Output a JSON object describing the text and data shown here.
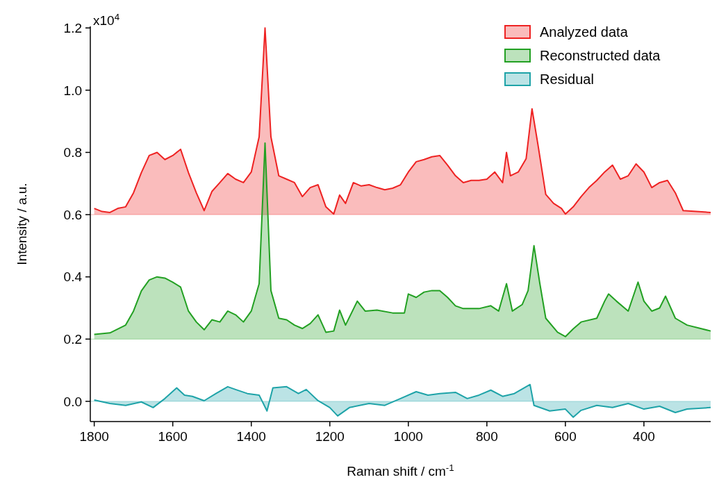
{
  "chart_data": {
    "type": "area",
    "xlabel": "Raman shift / cm$^{-1}$",
    "ylabel": "Intensity / a.u.",
    "xlim": [
      1810,
      230
    ],
    "ylim": [
      -0.065,
      1.205
    ],
    "xticks": [
      1800,
      1600,
      1400,
      1200,
      1000,
      800,
      600,
      400
    ],
    "yticks": [
      {
        "value": 0,
        "label": "0.0"
      },
      {
        "value": 0.2,
        "label": "0.2"
      },
      {
        "value": 0.4,
        "label": "0.4"
      },
      {
        "value": 0.6,
        "label": "0.6"
      },
      {
        "value": 0.8,
        "label": "0.8"
      },
      {
        "value": 1,
        "label": "1.0"
      },
      {
        "value": 1.2,
        "label": "1.2"
      }
    ],
    "annotations": [
      "x10$^{4}$"
    ],
    "grid": false,
    "ref_lines": [
      {
        "axis": "y",
        "value": 0.6,
        "color": "#ee2222"
      },
      {
        "axis": "y",
        "value": 0.2,
        "color": "#22a022"
      },
      {
        "axis": "y",
        "value": 0,
        "color": "#1ea3a8"
      }
    ],
    "legend": "top right",
    "series": [
      {
        "name": "Analyzed data",
        "color": "#ee2222",
        "x": [
          1800,
          1780,
          1760,
          1740,
          1720,
          1700,
          1680,
          1660,
          1640,
          1620,
          1600,
          1580,
          1560,
          1540,
          1520,
          1500,
          1480,
          1460,
          1440,
          1420,
          1400,
          1380,
          1365,
          1350,
          1330,
          1310,
          1290,
          1270,
          1250,
          1230,
          1210,
          1190,
          1175,
          1160,
          1140,
          1120,
          1100,
          1080,
          1060,
          1040,
          1020,
          1000,
          980,
          960,
          940,
          920,
          900,
          880,
          860,
          840,
          820,
          800,
          780,
          760,
          750,
          740,
          720,
          700,
          685,
          670,
          650,
          630,
          610,
          600,
          580,
          560,
          540,
          520,
          500,
          480,
          460,
          440,
          420,
          400,
          380,
          360,
          340,
          320,
          300,
          230
        ],
        "values": [
          0.62,
          0.61,
          0.607,
          0.62,
          0.625,
          0.67,
          0.735,
          0.79,
          0.8,
          0.777,
          0.79,
          0.81,
          0.735,
          0.67,
          0.613,
          0.675,
          0.703,
          0.732,
          0.714,
          0.703,
          0.737,
          0.85,
          1.2,
          0.85,
          0.725,
          0.714,
          0.703,
          0.658,
          0.687,
          0.696,
          0.625,
          0.602,
          0.663,
          0.636,
          0.703,
          0.692,
          0.696,
          0.687,
          0.68,
          0.685,
          0.696,
          0.737,
          0.77,
          0.777,
          0.786,
          0.79,
          0.759,
          0.725,
          0.703,
          0.71,
          0.71,
          0.714,
          0.737,
          0.703,
          0.8,
          0.725,
          0.737,
          0.78,
          0.94,
          0.826,
          0.665,
          0.636,
          0.62,
          0.602,
          0.625,
          0.658,
          0.687,
          0.71,
          0.737,
          0.759,
          0.714,
          0.725,
          0.763,
          0.737,
          0.687,
          0.703,
          0.71,
          0.67,
          0.613,
          0.607
        ]
      },
      {
        "name": "Reconstructed data",
        "color": "#22a022",
        "x": [
          1800,
          1760,
          1720,
          1700,
          1680,
          1660,
          1640,
          1620,
          1600,
          1580,
          1560,
          1540,
          1520,
          1500,
          1480,
          1460,
          1440,
          1420,
          1400,
          1380,
          1365,
          1350,
          1330,
          1310,
          1290,
          1270,
          1250,
          1230,
          1210,
          1190,
          1175,
          1160,
          1130,
          1110,
          1080,
          1040,
          1010,
          1000,
          980,
          960,
          940,
          920,
          900,
          880,
          860,
          820,
          790,
          770,
          750,
          735,
          710,
          695,
          680,
          665,
          650,
          620,
          600,
          580,
          560,
          520,
          500,
          490,
          470,
          440,
          415,
          400,
          380,
          360,
          345,
          320,
          290,
          230
        ],
        "values": [
          0.215,
          0.22,
          0.245,
          0.29,
          0.355,
          0.39,
          0.4,
          0.396,
          0.383,
          0.367,
          0.29,
          0.255,
          0.23,
          0.262,
          0.255,
          0.29,
          0.278,
          0.255,
          0.29,
          0.378,
          0.83,
          0.356,
          0.267,
          0.262,
          0.245,
          0.234,
          0.25,
          0.278,
          0.222,
          0.226,
          0.293,
          0.245,
          0.322,
          0.29,
          0.293,
          0.284,
          0.284,
          0.345,
          0.334,
          0.351,
          0.356,
          0.356,
          0.334,
          0.307,
          0.298,
          0.298,
          0.307,
          0.29,
          0.378,
          0.29,
          0.311,
          0.356,
          0.5,
          0.378,
          0.267,
          0.222,
          0.208,
          0.233,
          0.255,
          0.267,
          0.322,
          0.345,
          0.322,
          0.29,
          0.383,
          0.322,
          0.29,
          0.3,
          0.338,
          0.267,
          0.245,
          0.226
        ]
      },
      {
        "name": "Residual",
        "color": "#1ea3a8",
        "x": [
          1800,
          1760,
          1720,
          1680,
          1650,
          1620,
          1590,
          1570,
          1550,
          1520,
          1490,
          1460,
          1440,
          1410,
          1380,
          1360,
          1345,
          1310,
          1280,
          1260,
          1230,
          1200,
          1180,
          1150,
          1100,
          1060,
          1020,
          980,
          950,
          920,
          880,
          850,
          820,
          790,
          760,
          730,
          690,
          680,
          640,
          600,
          580,
          560,
          520,
          480,
          440,
          400,
          360,
          320,
          290,
          230
        ],
        "values": [
          0.004,
          -0.007,
          -0.013,
          -0.002,
          -0.02,
          0.009,
          0.043,
          0.02,
          0.016,
          0.002,
          0.025,
          0.047,
          0.038,
          0.025,
          0.02,
          -0.031,
          0.043,
          0.047,
          0.025,
          0.038,
          0.002,
          -0.02,
          -0.047,
          -0.02,
          -0.007,
          -0.013,
          0.009,
          0.031,
          0.02,
          0.025,
          0.029,
          0.009,
          0.02,
          0.036,
          0.016,
          0.025,
          0.054,
          -0.013,
          -0.031,
          -0.025,
          -0.051,
          -0.029,
          -0.013,
          -0.02,
          -0.007,
          -0.025,
          -0.016,
          -0.036,
          -0.025,
          -0.02
        ]
      }
    ]
  }
}
